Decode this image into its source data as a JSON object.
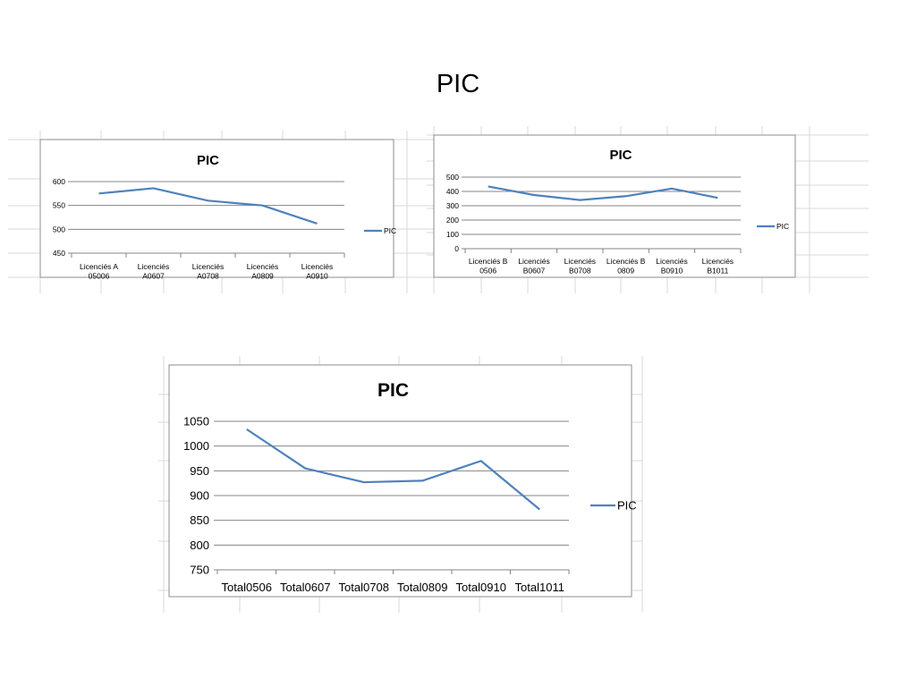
{
  "page_title": "PIC",
  "chart_data": [
    {
      "type": "line",
      "title": "PIC",
      "categories": [
        [
          "Licenciés A",
          "05006"
        ],
        [
          "Licenciés",
          "A0607"
        ],
        [
          "Licenciés",
          "A0708"
        ],
        [
          "Licenciés",
          "A0809"
        ],
        [
          "Licenciés",
          "A0910"
        ]
      ],
      "series": [
        {
          "name": "PIC",
          "values": [
            575,
            586,
            560,
            550,
            512
          ]
        }
      ],
      "yticks": [
        "450",
        "500",
        "550",
        "600"
      ],
      "ylim": [
        450,
        600
      ],
      "legend": "right",
      "color": "#4f81bd"
    },
    {
      "type": "line",
      "title": "PIC",
      "categories": [
        [
          "Licenciés B",
          "0506"
        ],
        [
          "Licenciés",
          "B0607"
        ],
        [
          "Licenciés",
          "B0708"
        ],
        [
          "Licenciés B",
          "0809"
        ],
        [
          "Licenciés",
          "B0910"
        ],
        [
          "Licenciés",
          "B1011"
        ]
      ],
      "series": [
        {
          "name": "PIC",
          "values": [
            435,
            375,
            340,
            367,
            420,
            355
          ]
        }
      ],
      "yticks": [
        "0",
        "100",
        "200",
        "300",
        "400",
        "500"
      ],
      "ylim": [
        0,
        500
      ],
      "legend": "right",
      "color": "#4f81bd"
    },
    {
      "type": "line",
      "title": "PIC",
      "categories": [
        [
          "Total0506"
        ],
        [
          "Total0607"
        ],
        [
          "Total0708"
        ],
        [
          "Total0809"
        ],
        [
          "Total0910"
        ],
        [
          "Total1011"
        ]
      ],
      "series": [
        {
          "name": "PIC",
          "values": [
            1034,
            955,
            927,
            930,
            970,
            872
          ]
        }
      ],
      "yticks": [
        "750",
        "800",
        "850",
        "900",
        "950",
        "1000",
        "1050"
      ],
      "ylim": [
        750,
        1050
      ],
      "legend": "right",
      "color": "#4f81bd"
    }
  ]
}
